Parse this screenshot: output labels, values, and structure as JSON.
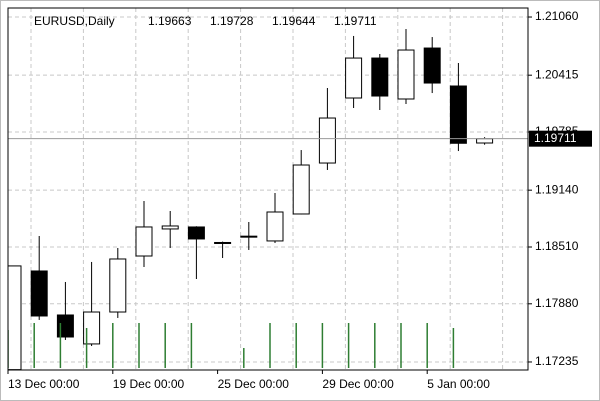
{
  "chart_data": {
    "type": "candlestick",
    "title": "EURUSD,Daily",
    "categories": [
      "13 Dec 00:00",
      null,
      null,
      null,
      "19 Dec 00:00",
      null,
      null,
      null,
      "25 Dec 00:00",
      null,
      null,
      null,
      "29 Dec 00:00",
      null,
      null,
      null,
      "5 Jan 00:00",
      null,
      null
    ],
    "open": [
      1.1715,
      1.18244,
      1.17756,
      1.17435,
      1.17789,
      1.1841,
      1.1871,
      1.18732,
      1.1856,
      1.1862,
      1.18577,
      1.18876,
      1.19441,
      1.20162,
      1.20605,
      1.20151,
      1.20716,
      1.20295,
      1.19663
    ],
    "high": [
      1.183,
      1.18632,
      1.18122,
      1.18344,
      1.18499,
      1.1902,
      1.18909,
      1.1874,
      1.1857,
      1.18787,
      1.19109,
      1.19585,
      1.20273,
      1.2085,
      1.2065,
      1.20927,
      1.20838,
      1.2055,
      1.19728
    ],
    "low": [
      1.1715,
      1.17701,
      1.17479,
      1.17412,
      1.17723,
      1.18288,
      1.18499,
      1.18155,
      1.18388,
      1.18477,
      1.18554,
      1.1887,
      1.19364,
      1.20051,
      1.20029,
      1.20095,
      1.20217,
      1.19574,
      1.19644
    ],
    "close": [
      1.183,
      1.17745,
      1.17512,
      1.17789,
      1.18377,
      1.18732,
      1.18743,
      1.18599,
      1.1855,
      1.1863,
      1.18898,
      1.19419,
      1.1994,
      1.20605,
      1.20184,
      1.20694,
      1.20328,
      1.1966,
      1.19711
    ],
    "volume": [
      38,
      45,
      45,
      40,
      45,
      45,
      45,
      45,
      0,
      20,
      45,
      45,
      45,
      45,
      45,
      45,
      45,
      40,
      0
    ],
    "ylim": [
      1.17146,
      1.2116
    ],
    "yticks": [
      {
        "value": 1.2106,
        "label": "1.21060"
      },
      1.20415,
      1.19785,
      {
        "value": 1.1914,
        "label": "1.19140"
      },
      {
        "value": 1.1851,
        "label": "1.18510"
      },
      {
        "value": 1.1788,
        "label": "1.17880"
      },
      1.17235
    ],
    "grid": true,
    "up_color": "#ffffff",
    "down_color": "#000000",
    "volume_color": "#2e7d32"
  }
}
